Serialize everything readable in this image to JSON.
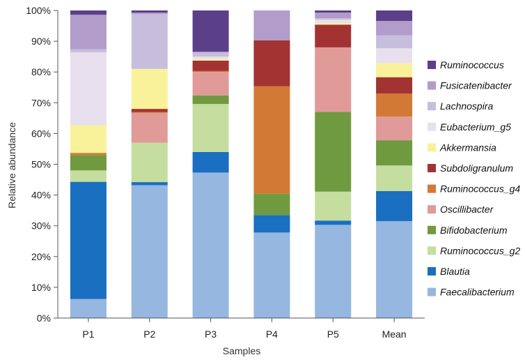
{
  "chart_data": {
    "type": "bar",
    "stacked": true,
    "title": "",
    "xlabel": "Samples",
    "ylabel": "Relative abundance",
    "ylim": [
      0,
      100
    ],
    "yticks": [
      0,
      10,
      20,
      30,
      40,
      50,
      60,
      70,
      80,
      90,
      100
    ],
    "ytick_suffix": "%",
    "categories": [
      "P1",
      "P2",
      "P3",
      "P4",
      "P5",
      "Mean"
    ],
    "legend_position": "right",
    "series": [
      {
        "name": "Faecalibacterium",
        "color": "#95b7e0",
        "values": [
          6.2,
          43.2,
          47.3,
          27.8,
          30.3,
          31.5
        ]
      },
      {
        "name": "Blautia",
        "color": "#1a6fc0",
        "values": [
          38.1,
          1.0,
          6.7,
          5.7,
          1.4,
          9.8
        ]
      },
      {
        "name": "Ruminococcus_g2",
        "color": "#c5de9f",
        "values": [
          3.7,
          12.8,
          15.6,
          0.0,
          9.4,
          8.3
        ]
      },
      {
        "name": "Bifidobacterium",
        "color": "#6f9a3f",
        "values": [
          5.0,
          0.0,
          2.8,
          6.9,
          25.9,
          8.2
        ]
      },
      {
        "name": "Oscillibacter",
        "color": "#e09a98",
        "values": [
          0.0,
          9.7,
          7.6,
          0.0,
          21.0,
          7.7
        ]
      },
      {
        "name": "Ruminococcus_g4",
        "color": "#d27a35",
        "values": [
          0.7,
          0.3,
          0.3,
          35.0,
          0.0,
          7.5
        ]
      },
      {
        "name": "Subdoligranulum",
        "color": "#a33333",
        "values": [
          0.0,
          1.0,
          3.4,
          14.9,
          7.4,
          5.3
        ]
      },
      {
        "name": "Akkermansia",
        "color": "#f9f29a",
        "values": [
          9.0,
          13.0,
          0.5,
          0.0,
          0.5,
          4.6
        ]
      },
      {
        "name": "Eubacterium_g5",
        "color": "#e8e0ee",
        "values": [
          23.7,
          0.0,
          0.8,
          0.0,
          1.1,
          4.8
        ]
      },
      {
        "name": "Lachnospira",
        "color": "#c7bddc",
        "values": [
          1.0,
          17.8,
          1.3,
          0.0,
          0.5,
          4.2
        ]
      },
      {
        "name": "Fusicatenibacter",
        "color": "#b29cc9",
        "values": [
          11.2,
          0.5,
          0.3,
          9.7,
          1.8,
          4.7
        ]
      },
      {
        "name": "Ruminococcus",
        "color": "#5b4089",
        "values": [
          1.4,
          0.7,
          13.4,
          0.0,
          0.7,
          3.4
        ]
      }
    ]
  }
}
